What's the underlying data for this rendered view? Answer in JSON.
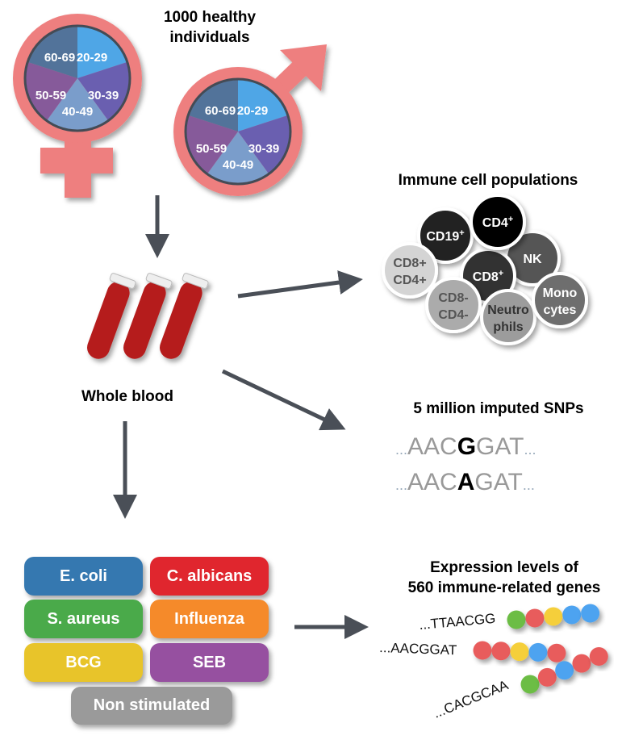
{
  "title": [
    "1000 healthy",
    "individuals"
  ],
  "age_groups": [
    "20-29",
    "30-39",
    "40-49",
    "50-59",
    "60-69"
  ],
  "age_colors": [
    "#4fa6e6",
    "#6a5fb0",
    "#7a9dcb",
    "#865a9a",
    "#52739a"
  ],
  "symbol_color": "#ee7f7f",
  "whole_blood": "Whole blood",
  "immune": {
    "title": "Immune cell populations",
    "cells": [
      {
        "label": [
          "CD19",
          "+"
        ],
        "color": "#222222",
        "text": "#fff"
      },
      {
        "label": [
          "CD4",
          "+"
        ],
        "color": "#000000",
        "text": "#fff"
      },
      {
        "label": [
          "NK",
          ""
        ],
        "color": "#555555",
        "text": "#fff"
      },
      {
        "label": [
          "CD8",
          "+"
        ],
        "color": "#333333",
        "text": "#fff"
      },
      {
        "label": [
          "CD8+",
          "CD4+"
        ],
        "color": "#d4d4d4",
        "text": "#555"
      },
      {
        "label": [
          "CD8-",
          "CD4-"
        ],
        "color": "#ababab",
        "text": "#555"
      },
      {
        "label": [
          "Neutro",
          "phils"
        ],
        "color": "#9c9c9c",
        "text": "#333"
      },
      {
        "label": [
          "Mono",
          "cytes"
        ],
        "color": "#6e6e6e",
        "text": "#fff"
      }
    ]
  },
  "snps": {
    "title": "5 million imputed SNPs",
    "seq": [
      {
        "pre": "AAC",
        "allele": "G",
        "post": "GAT"
      },
      {
        "pre": "AAC",
        "allele": "A",
        "post": "GAT"
      }
    ],
    "dots": "..."
  },
  "stimuli": [
    {
      "label": "E. coli",
      "color": "#3578b0"
    },
    {
      "label": "C. albicans",
      "color": "#e0262e"
    },
    {
      "label": "S. aureus",
      "color": "#4aaa4a"
    },
    {
      "label": "Influenza",
      "color": "#f58a2a"
    },
    {
      "label": "BCG",
      "color": "#e8c42a"
    },
    {
      "label": "SEB",
      "color": "#9650a0"
    },
    {
      "label": "Non stimulated",
      "color": "#9a9a9a"
    }
  ],
  "expression": {
    "title": [
      "Expression levels of",
      "560 immune-related genes"
    ],
    "rows": [
      {
        "seq": "...TTAACGG",
        "beads": [
          "#6cbd45",
          "#e85c5c",
          "#f5cf3a",
          "#4ea3f0",
          "#4ea3f0"
        ]
      },
      {
        "seq": "...AACGGAT",
        "beads": [
          "#e85c5c",
          "#e85c5c",
          "#f5cf3a",
          "#4ea3f0",
          "#e85c5c"
        ]
      },
      {
        "seq": "...CACGCAA",
        "beads": [
          "#6cbd45",
          "#e85c5c",
          "#4ea3f0",
          "#e85c5c",
          "#e85c5c"
        ]
      }
    ]
  }
}
